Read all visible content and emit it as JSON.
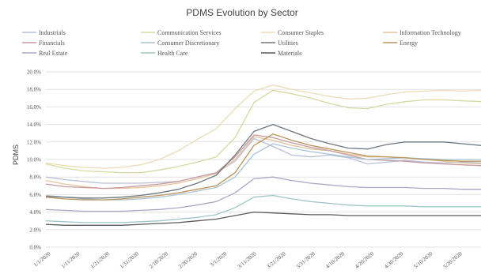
{
  "chart_data": {
    "type": "line",
    "title": "PDMS Evolution by Sector",
    "ylabel": "PDMS",
    "xlabel": "",
    "ylim": [
      0,
      20
    ],
    "y_ticks": [
      "0.0%",
      "2.0%",
      "4.0%",
      "6.0%",
      "8.0%",
      "10.0%",
      "12.0%",
      "14.0%",
      "16.0%",
      "18.0%",
      "20.0%"
    ],
    "x_tick_labels": [
      "1/1/2020",
      "1/11/2020",
      "1/21/2020",
      "1/31/2020",
      "2/10/2020",
      "2/20/2020",
      "3/1/2020",
      "3/11/2020",
      "3/21/2020",
      "3/31/2020",
      "4/10/2020",
      "4/20/2020",
      "4/30/2020",
      "5/10/2020",
      "5/20/2020"
    ],
    "x_start": "2020-01-01",
    "x_end": "2020-05-28",
    "grid": true,
    "legend_position": "top",
    "series": [
      {
        "name": "Industrials",
        "color": "#b9bfd6",
        "values": [
          8.0,
          7.7,
          7.5,
          7.3,
          7.3,
          7.3,
          7.4,
          7.5,
          8.0,
          8.5,
          9.8,
          12.4,
          11.5,
          10.5,
          10.3,
          10.5,
          10.2,
          9.5,
          9.7,
          9.9,
          9.7,
          9.6,
          9.7,
          9.6
        ]
      },
      {
        "name": "Communication Services",
        "color": "#d6d9a0",
        "values": [
          9.5,
          9.0,
          8.7,
          8.6,
          8.5,
          8.5,
          8.8,
          9.2,
          9.7,
          10.3,
          12.5,
          16.5,
          17.9,
          17.5,
          17.0,
          16.4,
          15.9,
          15.8,
          16.3,
          16.6,
          16.8,
          16.8,
          16.7,
          16.6
        ]
      },
      {
        "name": "Consumer Staples",
        "color": "#ecdcb6",
        "values": [
          9.6,
          9.3,
          9.1,
          9.0,
          9.1,
          9.4,
          10.0,
          11.0,
          12.3,
          13.5,
          15.8,
          17.8,
          18.5,
          18.0,
          17.6,
          17.2,
          16.9,
          17.0,
          17.4,
          17.7,
          17.8,
          17.9,
          17.8,
          17.9
        ]
      },
      {
        "name": "Information Technology",
        "color": "#e3c49a",
        "values": [
          7.6,
          7.2,
          6.9,
          6.7,
          6.7,
          6.8,
          7.0,
          7.3,
          7.8,
          8.4,
          10.0,
          12.6,
          12.2,
          11.6,
          11.2,
          11.0,
          10.6,
          10.3,
          10.3,
          10.2,
          10.0,
          9.8,
          9.6,
          9.5
        ]
      },
      {
        "name": "Financials",
        "color": "#c79aa0",
        "values": [
          7.2,
          6.9,
          6.8,
          6.7,
          6.8,
          7.0,
          7.2,
          7.5,
          8.0,
          8.5,
          10.3,
          12.8,
          12.5,
          11.9,
          11.4,
          11.0,
          10.5,
          10.0,
          9.9,
          9.8,
          9.6,
          9.5,
          9.4,
          9.3
        ]
      },
      {
        "name": "Consumer Discretionary",
        "color": "#a9c4d4",
        "values": [
          5.9,
          5.7,
          5.5,
          5.4,
          5.4,
          5.5,
          5.7,
          6.0,
          6.4,
          6.8,
          8.0,
          10.6,
          11.8,
          11.3,
          10.9,
          10.6,
          10.3,
          10.0,
          10.1,
          10.2,
          10.1,
          10.0,
          10.0,
          10.0
        ]
      },
      {
        "name": "Utilities",
        "color": "#6e7880",
        "values": [
          5.8,
          5.7,
          5.6,
          5.6,
          5.7,
          5.9,
          6.2,
          6.6,
          7.3,
          8.2,
          10.5,
          13.2,
          14.0,
          13.2,
          12.4,
          11.8,
          11.3,
          11.2,
          11.7,
          12.0,
          12.0,
          12.0,
          11.8,
          11.6
        ]
      },
      {
        "name": "Energy",
        "color": "#b8955c",
        "values": [
          5.7,
          5.5,
          5.4,
          5.4,
          5.5,
          5.7,
          5.9,
          6.2,
          6.6,
          7.0,
          8.5,
          11.6,
          12.9,
          12.2,
          11.6,
          11.2,
          10.8,
          10.4,
          10.3,
          10.2,
          10.0,
          9.9,
          9.8,
          9.8
        ]
      },
      {
        "name": "Real Estate",
        "color": "#a8a8c6",
        "values": [
          4.3,
          4.2,
          4.1,
          4.1,
          4.1,
          4.2,
          4.3,
          4.5,
          4.8,
          5.2,
          6.2,
          7.8,
          8.0,
          7.6,
          7.3,
          7.1,
          6.9,
          6.8,
          6.8,
          6.8,
          6.7,
          6.7,
          6.6,
          6.6
        ]
      },
      {
        "name": "Health Care",
        "color": "#9cc7c6",
        "values": [
          3.0,
          2.9,
          2.8,
          2.8,
          2.8,
          2.9,
          3.0,
          3.2,
          3.4,
          3.7,
          4.5,
          5.7,
          5.9,
          5.5,
          5.2,
          5.0,
          4.8,
          4.7,
          4.7,
          4.7,
          4.6,
          4.6,
          4.6,
          4.6
        ]
      },
      {
        "name": "Materials",
        "color": "#595959",
        "values": [
          2.6,
          2.5,
          2.5,
          2.5,
          2.5,
          2.6,
          2.7,
          2.8,
          3.0,
          3.2,
          3.6,
          4.0,
          3.9,
          3.8,
          3.7,
          3.7,
          3.6,
          3.6,
          3.6,
          3.6,
          3.6,
          3.6,
          3.6,
          3.6
        ]
      }
    ]
  }
}
